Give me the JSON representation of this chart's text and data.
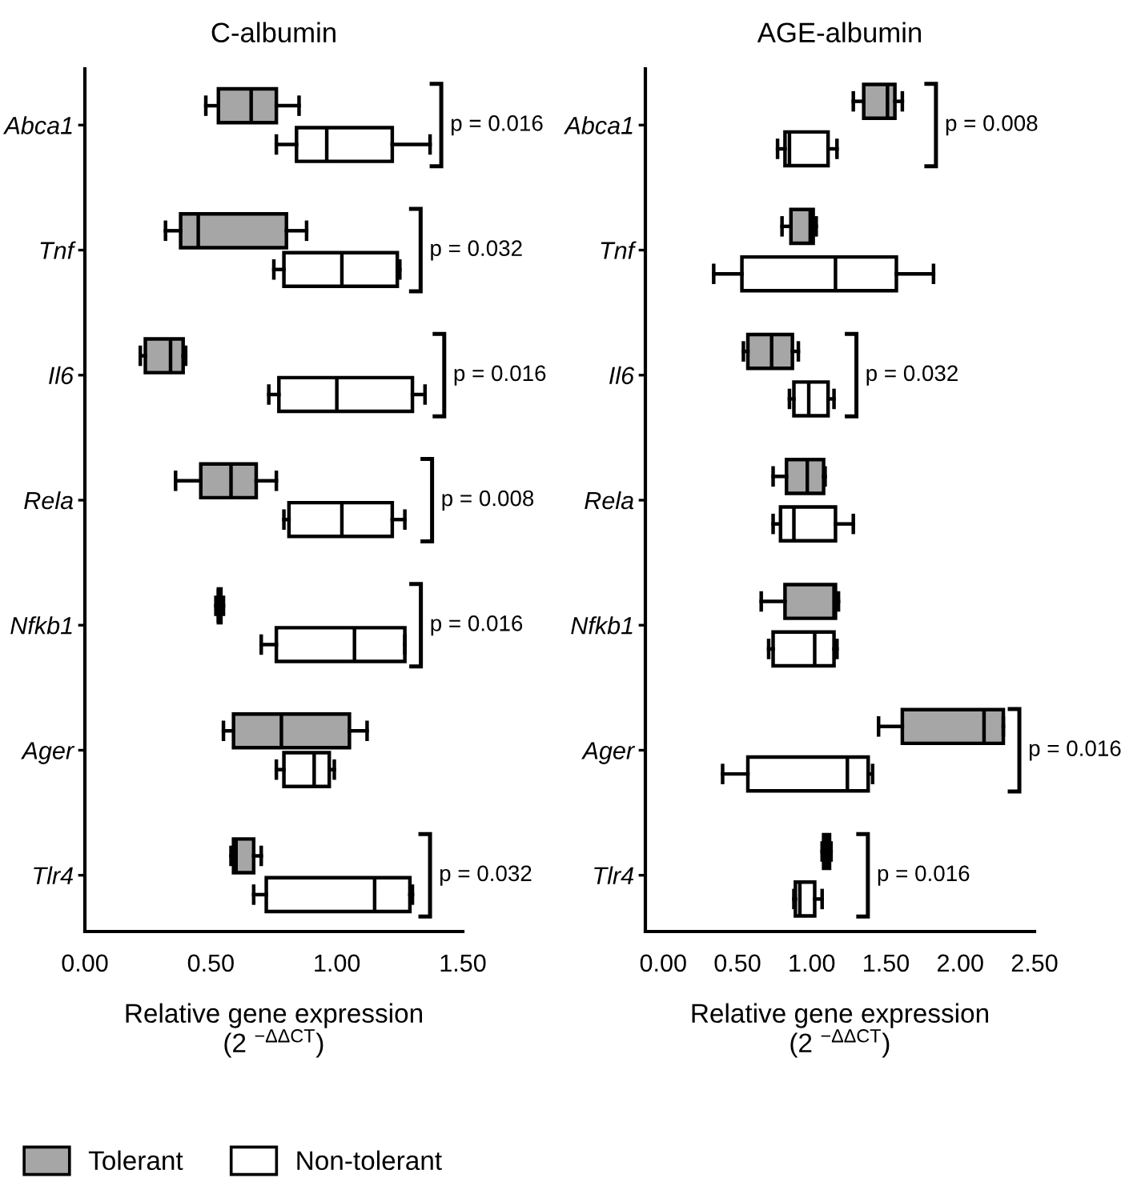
{
  "chart_data": [
    {
      "type": "box",
      "title": "C-albumin",
      "xlabel": "Relative gene expression\n(2 $^{−ΔΔCT}$)",
      "orientation": "horizontal",
      "categories": [
        "Abca1",
        "Tnf",
        "Il6",
        "Rela",
        "Nfkb1",
        "Ager",
        "Tlr4"
      ],
      "xlim": [
        0,
        1.5
      ],
      "xticks": [
        {
          "value": 0,
          "label": "0.00"
        },
        {
          "value": 0.5,
          "label": "0.50"
        },
        {
          "value": 1,
          "label": "1.00"
        },
        {
          "value": 1.5,
          "label": "1.50"
        }
      ],
      "series": [
        {
          "name": "Tolerant",
          "color": "#a6a6a6",
          "boxes": [
            {
              "low": 0.48,
              "q1": 0.53,
              "median": 0.66,
              "q3": 0.76,
              "high": 0.85
            },
            {
              "low": 0.32,
              "q1": 0.38,
              "median": 0.45,
              "q3": 0.8,
              "high": 0.88
            },
            {
              "low": 0.22,
              "q1": 0.24,
              "median": 0.34,
              "q3": 0.39,
              "high": 0.4
            },
            {
              "low": 0.36,
              "q1": 0.46,
              "median": 0.58,
              "q3": 0.68,
              "high": 0.76
            },
            {
              "low": 0.52,
              "q1": 0.53,
              "median": 0.53,
              "q3": 0.54,
              "high": 0.55
            },
            {
              "low": 0.55,
              "q1": 0.59,
              "median": 0.78,
              "q3": 1.05,
              "high": 1.12
            },
            {
              "low": 0.58,
              "q1": 0.59,
              "median": 0.6,
              "q3": 0.67,
              "high": 0.7
            }
          ]
        },
        {
          "name": "Non-tolerant",
          "color": "#ffffff",
          "boxes": [
            {
              "low": 0.76,
              "q1": 0.84,
              "median": 0.96,
              "q3": 1.22,
              "high": 1.37
            },
            {
              "low": 0.75,
              "q1": 0.79,
              "median": 1.02,
              "q3": 1.24,
              "high": 1.25
            },
            {
              "low": 0.73,
              "q1": 0.77,
              "median": 1.0,
              "q3": 1.3,
              "high": 1.35
            },
            {
              "low": 0.79,
              "q1": 0.81,
              "median": 1.02,
              "q3": 1.22,
              "high": 1.27
            },
            {
              "low": 0.7,
              "q1": 0.76,
              "median": 1.07,
              "q3": 1.27,
              "high": 1.27
            },
            {
              "low": 0.76,
              "q1": 0.79,
              "median": 0.91,
              "q3": 0.97,
              "high": 0.99
            },
            {
              "low": 0.67,
              "q1": 0.72,
              "median": 1.15,
              "q3": 1.29,
              "high": 1.3
            }
          ]
        }
      ],
      "annotations": [
        "p = 0.016",
        "p = 0.032",
        "p = 0.016",
        "p = 0.008",
        "p = 0.016",
        "p = 0.032"
      ],
      "legend": "bottom left"
    },
    {
      "type": "box",
      "title": "AGE-albumin",
      "xlabel": "Relative gene expression\n(2 $^{−ΔΔCT}$)",
      "orientation": "horizontal",
      "categories": [
        "Abca1",
        "Tnf",
        "Il6",
        "Rela",
        "Nfkb1",
        "Ager",
        "Tlr4"
      ],
      "xlim": [
        -0.12,
        2.5
      ],
      "xticks": [
        {
          "value": 0,
          "label": "0.00"
        },
        {
          "value": 0.5,
          "label": "0.50"
        },
        {
          "value": 1,
          "label": "1.00"
        },
        {
          "value": 1.5,
          "label": "1.50"
        },
        {
          "value": 2,
          "label": "2.00"
        },
        {
          "value": 2.5,
          "label": "2.50"
        }
      ],
      "series": [
        {
          "name": "Tolerant",
          "color": "#a6a6a6",
          "boxes": [
            {
              "low": 1.28,
              "q1": 1.35,
              "median": 1.51,
              "q3": 1.56,
              "high": 1.61
            },
            {
              "low": 0.8,
              "q1": 0.86,
              "median": 0.99,
              "q3": 1.01,
              "high": 1.03
            },
            {
              "low": 0.54,
              "q1": 0.57,
              "median": 0.73,
              "q3": 0.87,
              "high": 0.91
            },
            {
              "low": 0.74,
              "q1": 0.83,
              "median": 0.97,
              "q3": 1.08,
              "high": 1.09
            },
            {
              "low": 0.66,
              "q1": 0.82,
              "median": 1.15,
              "q3": 1.16,
              "high": 1.18
            },
            {
              "low": 1.45,
              "q1": 1.61,
              "median": 2.16,
              "q3": 2.29,
              "high": 2.29
            },
            {
              "low": 1.07,
              "q1": 1.08,
              "median": 1.1,
              "q3": 1.12,
              "high": 1.13
            }
          ]
        },
        {
          "name": "Non-tolerant",
          "color": "#ffffff",
          "boxes": [
            {
              "low": 0.77,
              "q1": 0.82,
              "median": 0.85,
              "q3": 1.11,
              "high": 1.17
            },
            {
              "low": 0.34,
              "q1": 0.53,
              "median": 1.16,
              "q3": 1.57,
              "high": 1.82
            },
            {
              "low": 0.85,
              "q1": 0.88,
              "median": 0.98,
              "q3": 1.11,
              "high": 1.15
            },
            {
              "low": 0.74,
              "q1": 0.79,
              "median": 0.88,
              "q3": 1.16,
              "high": 1.28
            },
            {
              "low": 0.71,
              "q1": 0.74,
              "median": 1.02,
              "q3": 1.15,
              "high": 1.17
            },
            {
              "low": 0.4,
              "q1": 0.57,
              "median": 1.24,
              "q3": 1.38,
              "high": 1.41
            },
            {
              "low": 0.88,
              "q1": 0.89,
              "median": 0.92,
              "q3": 1.02,
              "high": 1.07
            }
          ]
        }
      ],
      "annotations": [
        "p = 0.008",
        "p = 0.032",
        "p = 0.016",
        "p = 0.016"
      ]
    }
  ]
}
